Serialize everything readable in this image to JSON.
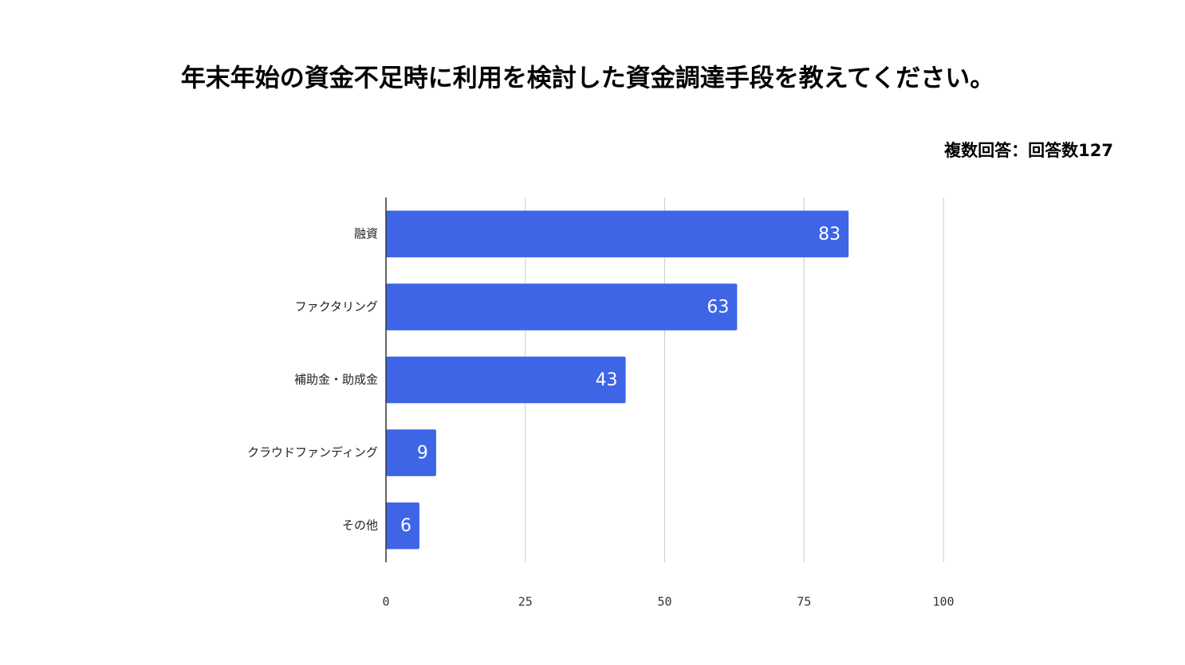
{
  "chart_data": {
    "type": "bar",
    "orientation": "horizontal",
    "title": "年末年始の資金不足時に利用を検討した資金調達手段を教えてください。",
    "subtitle": "複数回答：回答数127",
    "categories": [
      "融資",
      "ファクタリング",
      "補助金・助成金",
      "クラウドファンディング",
      "その他"
    ],
    "values": [
      83,
      63,
      43,
      9,
      6
    ],
    "color": "#3d65e6",
    "xlim": [
      0,
      100
    ],
    "xticks": [
      0,
      25,
      50,
      75,
      100
    ],
    "grid": true
  }
}
